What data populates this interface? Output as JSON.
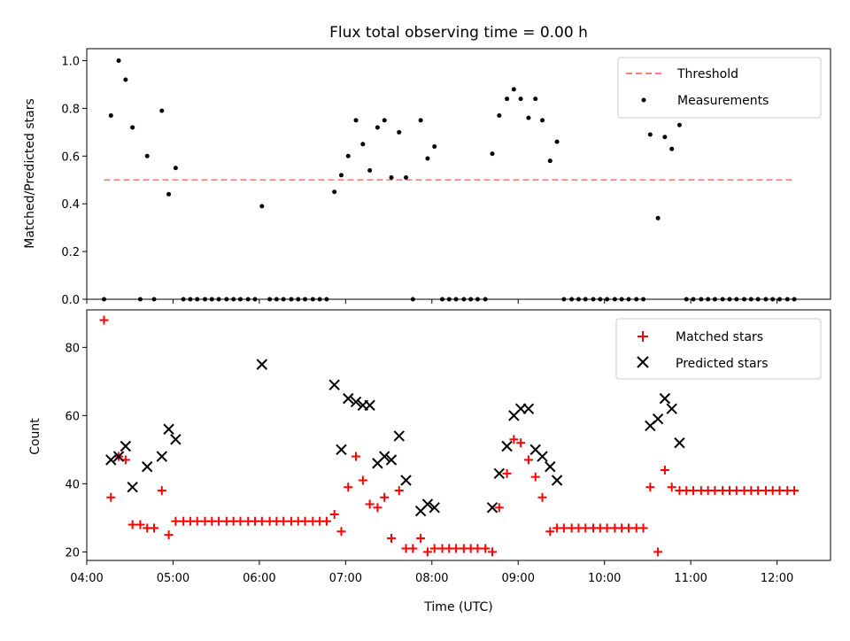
{
  "title": "Flux total observing time = 0.00 h",
  "chart_data": [
    {
      "type": "scatter",
      "ylabel": "Matched/Predicted stars",
      "xlim": [
        4.0,
        12.62
      ],
      "ylim": [
        0.0,
        1.05
      ],
      "yticks": [
        0.0,
        0.2,
        0.4,
        0.6,
        0.8,
        1.0
      ],
      "ytick_labels": [
        "0.0",
        "0.2",
        "0.4",
        "0.6",
        "0.8",
        "1.0"
      ],
      "legend_position": "top-right",
      "threshold": {
        "name": "Threshold",
        "value": 0.5,
        "x_range": [
          4.2,
          12.2
        ],
        "color": "#ff7f7f"
      },
      "series": [
        {
          "name": "Measurements",
          "color": "#000000",
          "marker": "dot",
          "points": [
            [
              4.2,
              0
            ],
            [
              4.28,
              0.77
            ],
            [
              4.37,
              1.0
            ],
            [
              4.45,
              0.92
            ],
            [
              4.53,
              0.72
            ],
            [
              4.62,
              0
            ],
            [
              4.7,
              0.6
            ],
            [
              4.78,
              0
            ],
            [
              4.87,
              0.79
            ],
            [
              4.95,
              0.44
            ],
            [
              5.03,
              0.55
            ],
            [
              5.12,
              0
            ],
            [
              5.2,
              0
            ],
            [
              5.28,
              0
            ],
            [
              5.37,
              0
            ],
            [
              5.45,
              0
            ],
            [
              5.53,
              0
            ],
            [
              5.62,
              0
            ],
            [
              5.7,
              0
            ],
            [
              5.78,
              0
            ],
            [
              5.87,
              0
            ],
            [
              5.95,
              0
            ],
            [
              6.03,
              0.39
            ],
            [
              6.12,
              0
            ],
            [
              6.2,
              0
            ],
            [
              6.28,
              0
            ],
            [
              6.37,
              0
            ],
            [
              6.45,
              0
            ],
            [
              6.53,
              0
            ],
            [
              6.62,
              0
            ],
            [
              6.7,
              0
            ],
            [
              6.78,
              0
            ],
            [
              6.87,
              0.45
            ],
            [
              6.95,
              0.52
            ],
            [
              7.03,
              0.6
            ],
            [
              7.12,
              0.75
            ],
            [
              7.2,
              0.65
            ],
            [
              7.28,
              0.54
            ],
            [
              7.37,
              0.72
            ],
            [
              7.45,
              0.75
            ],
            [
              7.53,
              0.51
            ],
            [
              7.62,
              0.7
            ],
            [
              7.7,
              0.51
            ],
            [
              7.78,
              0
            ],
            [
              7.87,
              0.75
            ],
            [
              7.95,
              0.59
            ],
            [
              8.03,
              0.64
            ],
            [
              8.12,
              0
            ],
            [
              8.2,
              0
            ],
            [
              8.28,
              0
            ],
            [
              8.37,
              0
            ],
            [
              8.45,
              0
            ],
            [
              8.53,
              0
            ],
            [
              8.62,
              0
            ],
            [
              8.7,
              0.61
            ],
            [
              8.78,
              0.77
            ],
            [
              8.87,
              0.84
            ],
            [
              8.95,
              0.88
            ],
            [
              9.03,
              0.84
            ],
            [
              9.12,
              0.76
            ],
            [
              9.2,
              0.84
            ],
            [
              9.28,
              0.75
            ],
            [
              9.37,
              0.58
            ],
            [
              9.45,
              0.66
            ],
            [
              9.53,
              0
            ],
            [
              9.62,
              0
            ],
            [
              9.7,
              0
            ],
            [
              9.78,
              0
            ],
            [
              9.87,
              0
            ],
            [
              9.95,
              0
            ],
            [
              10.03,
              0
            ],
            [
              10.12,
              0
            ],
            [
              10.2,
              0
            ],
            [
              10.28,
              0
            ],
            [
              10.37,
              0
            ],
            [
              10.45,
              0
            ],
            [
              10.53,
              0.69
            ],
            [
              10.62,
              0.34
            ],
            [
              10.7,
              0.68
            ],
            [
              10.78,
              0.63
            ],
            [
              10.87,
              0.73
            ],
            [
              10.95,
              0
            ],
            [
              11.03,
              0
            ],
            [
              11.12,
              0
            ],
            [
              11.2,
              0
            ],
            [
              11.28,
              0
            ],
            [
              11.37,
              0
            ],
            [
              11.45,
              0
            ],
            [
              11.53,
              0
            ],
            [
              11.62,
              0
            ],
            [
              11.7,
              0
            ],
            [
              11.78,
              0
            ],
            [
              11.87,
              0
            ],
            [
              11.95,
              0
            ],
            [
              12.03,
              0
            ],
            [
              12.12,
              0
            ],
            [
              12.2,
              0
            ]
          ]
        }
      ]
    },
    {
      "type": "scatter",
      "xlabel": "Time (UTC)",
      "ylabel": "Count",
      "xlim": [
        4.0,
        12.62
      ],
      "ylim": [
        17.5,
        91.0
      ],
      "yticks": [
        20,
        40,
        60,
        80
      ],
      "ytick_labels": [
        "20",
        "40",
        "60",
        "80"
      ],
      "xticks": [
        4,
        5,
        6,
        7,
        8,
        9,
        10,
        11,
        12
      ],
      "xtick_labels": [
        "04:00",
        "05:00",
        "06:00",
        "07:00",
        "08:00",
        "09:00",
        "10:00",
        "11:00",
        "12:00"
      ],
      "legend_position": "top-right",
      "series": [
        {
          "name": "Matched stars",
          "color": "#ff0000",
          "marker": "plus",
          "points": [
            [
              4.2,
              88
            ],
            [
              4.28,
              36
            ],
            [
              4.37,
              48
            ],
            [
              4.45,
              47
            ],
            [
              4.53,
              28
            ],
            [
              4.62,
              28
            ],
            [
              4.7,
              27
            ],
            [
              4.78,
              27
            ],
            [
              4.87,
              38
            ],
            [
              4.95,
              25
            ],
            [
              5.03,
              29
            ],
            [
              5.12,
              29
            ],
            [
              5.2,
              29
            ],
            [
              5.28,
              29
            ],
            [
              5.37,
              29
            ],
            [
              5.45,
              29
            ],
            [
              5.53,
              29
            ],
            [
              5.62,
              29
            ],
            [
              5.7,
              29
            ],
            [
              5.78,
              29
            ],
            [
              5.87,
              29
            ],
            [
              5.95,
              29
            ],
            [
              6.03,
              29
            ],
            [
              6.12,
              29
            ],
            [
              6.2,
              29
            ],
            [
              6.28,
              29
            ],
            [
              6.37,
              29
            ],
            [
              6.45,
              29
            ],
            [
              6.53,
              29
            ],
            [
              6.62,
              29
            ],
            [
              6.7,
              29
            ],
            [
              6.78,
              29
            ],
            [
              6.87,
              31
            ],
            [
              6.95,
              26
            ],
            [
              7.03,
              39
            ],
            [
              7.12,
              48
            ],
            [
              7.2,
              41
            ],
            [
              7.28,
              34
            ],
            [
              7.37,
              33
            ],
            [
              7.45,
              36
            ],
            [
              7.53,
              24
            ],
            [
              7.62,
              38
            ],
            [
              7.7,
              21
            ],
            [
              7.78,
              21
            ],
            [
              7.87,
              24
            ],
            [
              7.95,
              20
            ],
            [
              8.03,
              21
            ],
            [
              8.12,
              21
            ],
            [
              8.2,
              21
            ],
            [
              8.28,
              21
            ],
            [
              8.37,
              21
            ],
            [
              8.45,
              21
            ],
            [
              8.53,
              21
            ],
            [
              8.62,
              21
            ],
            [
              8.7,
              20
            ],
            [
              8.78,
              33
            ],
            [
              8.87,
              43
            ],
            [
              8.95,
              53
            ],
            [
              9.03,
              52
            ],
            [
              9.12,
              47
            ],
            [
              9.2,
              42
            ],
            [
              9.28,
              36
            ],
            [
              9.37,
              26
            ],
            [
              9.45,
              27
            ],
            [
              9.53,
              27
            ],
            [
              9.62,
              27
            ],
            [
              9.7,
              27
            ],
            [
              9.78,
              27
            ],
            [
              9.87,
              27
            ],
            [
              9.95,
              27
            ],
            [
              10.03,
              27
            ],
            [
              10.12,
              27
            ],
            [
              10.2,
              27
            ],
            [
              10.28,
              27
            ],
            [
              10.37,
              27
            ],
            [
              10.45,
              27
            ],
            [
              10.53,
              39
            ],
            [
              10.62,
              20
            ],
            [
              10.7,
              44
            ],
            [
              10.78,
              39
            ],
            [
              10.87,
              38
            ],
            [
              10.95,
              38
            ],
            [
              11.03,
              38
            ],
            [
              11.12,
              38
            ],
            [
              11.2,
              38
            ],
            [
              11.28,
              38
            ],
            [
              11.37,
              38
            ],
            [
              11.45,
              38
            ],
            [
              11.53,
              38
            ],
            [
              11.62,
              38
            ],
            [
              11.7,
              38
            ],
            [
              11.78,
              38
            ],
            [
              11.87,
              38
            ],
            [
              11.95,
              38
            ],
            [
              12.03,
              38
            ],
            [
              12.12,
              38
            ],
            [
              12.2,
              38
            ]
          ]
        },
        {
          "name": "Predicted stars",
          "color": "#000000",
          "marker": "x",
          "points": [
            [
              4.28,
              47
            ],
            [
              4.37,
              48
            ],
            [
              4.45,
              51
            ],
            [
              4.53,
              39
            ],
            [
              4.7,
              45
            ],
            [
              4.87,
              48
            ],
            [
              4.95,
              56
            ],
            [
              5.03,
              53
            ],
            [
              6.03,
              75
            ],
            [
              6.87,
              69
            ],
            [
              6.95,
              50
            ],
            [
              7.03,
              65
            ],
            [
              7.12,
              64
            ],
            [
              7.2,
              63
            ],
            [
              7.28,
              63
            ],
            [
              7.37,
              46
            ],
            [
              7.45,
              48
            ],
            [
              7.53,
              47
            ],
            [
              7.62,
              54
            ],
            [
              7.7,
              41
            ],
            [
              7.87,
              32
            ],
            [
              7.95,
              34
            ],
            [
              8.03,
              33
            ],
            [
              8.7,
              33
            ],
            [
              8.78,
              43
            ],
            [
              8.87,
              51
            ],
            [
              8.95,
              60
            ],
            [
              9.03,
              62
            ],
            [
              9.12,
              62
            ],
            [
              9.2,
              50
            ],
            [
              9.28,
              48
            ],
            [
              9.37,
              45
            ],
            [
              9.45,
              41
            ],
            [
              10.53,
              57
            ],
            [
              10.62,
              59
            ],
            [
              10.7,
              65
            ],
            [
              10.78,
              62
            ],
            [
              10.87,
              52
            ]
          ]
        }
      ]
    }
  ]
}
